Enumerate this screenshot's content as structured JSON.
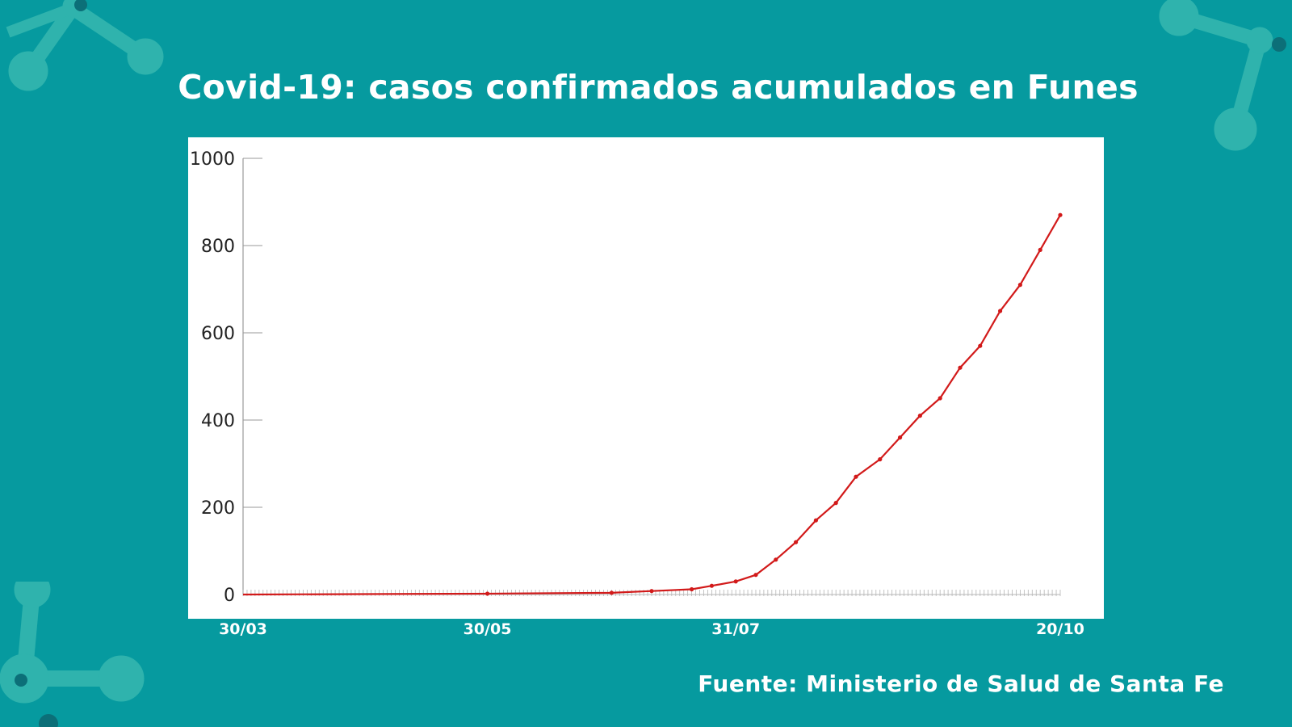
{
  "title": "Covid-19: casos confirmados acumulados en Funes",
  "source": "Fuente: Ministerio de Salud de Santa Fe",
  "colors": {
    "background": "#069a9f",
    "decoration": "#2fb3ad",
    "panel": "#ffffff",
    "line": "#d21a1a",
    "axis": "#999999",
    "text": "#ffffff"
  },
  "chart_data": {
    "type": "line",
    "title": "Covid-19: casos confirmados acumulados en Funes",
    "xlabel": "",
    "ylabel": "",
    "x_ticks": [
      "30/03",
      "30/05",
      "31/07",
      "20/10"
    ],
    "y_ticks": [
      0,
      200,
      400,
      600,
      800,
      1000
    ],
    "ylim": [
      0,
      1000
    ],
    "x_range": [
      "30/03",
      "20/10"
    ],
    "grid": false,
    "legend": "none",
    "series": [
      {
        "x": [
          "30/03",
          "30/05",
          "30/06",
          "10/07",
          "20/07",
          "25/07",
          "31/07",
          "05/08",
          "10/08",
          "15/08",
          "20/08",
          "25/08",
          "30/08",
          "05/09",
          "10/09",
          "15/09",
          "20/09",
          "25/09",
          "30/09",
          "05/10",
          "10/10",
          "15/10",
          "20/10"
        ],
        "y": [
          0,
          2,
          4,
          8,
          12,
          20,
          30,
          45,
          80,
          120,
          170,
          210,
          270,
          310,
          360,
          410,
          450,
          520,
          570,
          650,
          710,
          790,
          870
        ]
      }
    ]
  }
}
